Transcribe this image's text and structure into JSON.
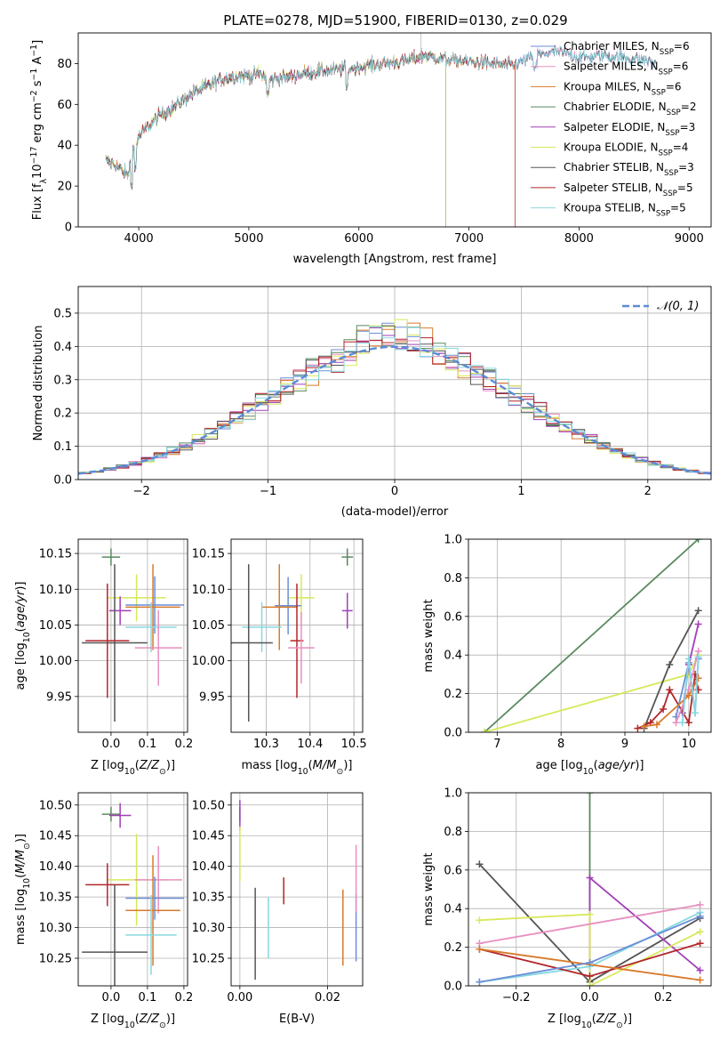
{
  "figure_title": "PLATE=0278, MJD=51900, FIBERID=0130, z=0.029",
  "models": [
    {
      "name": "Chabrier MILES",
      "nssp": "6",
      "color": "#6a8fd6"
    },
    {
      "name": "Salpeter MILES",
      "nssp": "6",
      "color": "#e88fbf"
    },
    {
      "name": "Kroupa MILES",
      "nssp": "6",
      "color": "#d9792a"
    },
    {
      "name": "Chabrier ELODIE",
      "nssp": "2",
      "color": "#5a8a5e"
    },
    {
      "name": "Salpeter ELODIE",
      "nssp": "3",
      "color": "#a23fb8"
    },
    {
      "name": "Kroupa ELODIE",
      "nssp": "4",
      "color": "#d8e85a"
    },
    {
      "name": "Chabrier STELIB",
      "nssp": "3",
      "color": "#555555"
    },
    {
      "name": "Salpeter STELIB",
      "nssp": "5",
      "color": "#b3262a"
    },
    {
      "name": "Kroupa STELIB",
      "nssp": "5",
      "color": "#86d8e0"
    }
  ],
  "chart_data": [
    {
      "id": "spectrum",
      "type": "line",
      "xlabel": "wavelength [Angstrom, rest frame]",
      "ylabel": "Flux [f_λ 10^-17 erg cm^-2 s^-1 A^-1]",
      "xlim": [
        3450,
        9200
      ],
      "ylim": [
        0,
        95
      ],
      "xticks": [
        4000,
        5000,
        6000,
        7000,
        8000,
        9000
      ],
      "yticks": [
        0,
        20,
        40,
        60,
        80
      ],
      "grid": false,
      "legend": "right",
      "continuum": {
        "x": [
          3700,
          3800,
          3900,
          3950,
          4000,
          4100,
          4200,
          4300,
          4400,
          4500,
          4600,
          4700,
          4800,
          4900,
          5000,
          5100,
          5200,
          5300,
          5400,
          5600,
          5800,
          6000,
          6200,
          6400,
          6600,
          6800,
          7000,
          7200,
          7400,
          7600,
          7800,
          8000,
          8200,
          8400,
          8600,
          8700
        ],
        "y": [
          32,
          30,
          25,
          38,
          44,
          50,
          55,
          58,
          62,
          66,
          68,
          71,
          73,
          74,
          74,
          75,
          72,
          73,
          74,
          76,
          77,
          78,
          80,
          81,
          84,
          82,
          81,
          80,
          79,
          84,
          86,
          83,
          84,
          83,
          82,
          80
        ]
      },
      "model_cutoffs": [
        {
          "model": "Chabrier ELODIE",
          "end_x": 6790
        },
        {
          "model": "Salpeter ELODIE",
          "end_x": 6790
        },
        {
          "model": "Kroupa ELODIE",
          "end_x": 6790
        },
        {
          "model": "Salpeter STELIB",
          "end_x": 7420
        },
        {
          "model": "Kroupa MILES",
          "end_x": 7420
        }
      ]
    },
    {
      "id": "residuals",
      "type": "histogram",
      "xlabel": "(data-model)/error",
      "ylabel": "Normed distribution",
      "xlim": [
        -2.5,
        2.5
      ],
      "ylim": [
        0,
        0.58
      ],
      "xticks": [
        -2,
        -1,
        0,
        1,
        2
      ],
      "yticks": [
        0.0,
        0.1,
        0.2,
        0.3,
        0.4,
        0.5
      ],
      "grid": true,
      "legend": "top-right",
      "bin_width": 0.1,
      "reference_curve": {
        "label": "N(0,1)",
        "color": "#5b8bd6",
        "mean": 0,
        "sigma": 1
      }
    },
    {
      "id": "age_vs_Z",
      "type": "errorbar",
      "xlabel": "Z [log10(Z/Z⊙)]",
      "ylabel": "age [log10(age/yr)]",
      "xlim": [
        -0.09,
        0.21
      ],
      "ylim": [
        9.9,
        10.17
      ],
      "xticks": [
        0.0,
        0.1,
        0.2
      ],
      "yticks": [
        9.95,
        10.0,
        10.05,
        10.1,
        10.15
      ],
      "grid": true,
      "points": [
        {
          "model": "Chabrier ELODIE",
          "x": 0.0,
          "xerr": 0.025,
          "y": 10.145,
          "yerr": 0.012
        },
        {
          "model": "Kroupa ELODIE",
          "x": 0.07,
          "xerr": 0.08,
          "y": 10.088,
          "yerr": 0.033
        },
        {
          "model": "Salpeter ELODIE",
          "x": 0.025,
          "xerr": 0.03,
          "y": 10.07,
          "yerr": 0.02
        },
        {
          "model": "Chabrier MILES",
          "x": 0.12,
          "xerr": 0.08,
          "y": 10.078,
          "yerr": 0.04
        },
        {
          "model": "Kroupa MILES",
          "x": 0.115,
          "xerr": 0.075,
          "y": 10.075,
          "yerr": 0.06
        },
        {
          "model": "Kroupa STELIB",
          "x": 0.11,
          "xerr": 0.07,
          "y": 10.047,
          "yerr": 0.035
        },
        {
          "model": "Chabrier STELIB",
          "x": 0.01,
          "xerr": 0.09,
          "y": 10.025,
          "yerr": 0.11
        },
        {
          "model": "Salpeter STELIB",
          "x": -0.01,
          "xerr": 0.06,
          "y": 10.028,
          "yerr": 0.08
        },
        {
          "model": "Salpeter MILES",
          "x": 0.13,
          "xerr": 0.065,
          "y": 10.018,
          "yerr": 0.053
        }
      ]
    },
    {
      "id": "age_vs_mass",
      "type": "errorbar",
      "xlabel": "mass [log10(M/M⊙)]",
      "ylabel": "",
      "xlim": [
        10.22,
        10.52
      ],
      "ylim": [
        9.9,
        10.17
      ],
      "xticks": [
        10.3,
        10.4,
        10.5
      ],
      "yticks": [
        9.95,
        10.0,
        10.05,
        10.1,
        10.15
      ],
      "grid": true,
      "points": [
        {
          "model": "Chabrier ELODIE",
          "x": 10.485,
          "xerr": 0.013,
          "y": 10.145,
          "yerr": 0.012
        },
        {
          "model": "Kroupa ELODIE",
          "x": 10.38,
          "xerr": 0.03,
          "y": 10.088,
          "yerr": 0.033
        },
        {
          "model": "Salpeter ELODIE",
          "x": 10.485,
          "xerr": 0.012,
          "y": 10.07,
          "yerr": 0.025
        },
        {
          "model": "Chabrier MILES",
          "x": 10.35,
          "xerr": 0.03,
          "y": 10.077,
          "yerr": 0.04
        },
        {
          "model": "Kroupa MILES",
          "x": 10.33,
          "xerr": 0.04,
          "y": 10.075,
          "yerr": 0.06
        },
        {
          "model": "Kroupa STELIB",
          "x": 10.29,
          "xerr": 0.045,
          "y": 10.047,
          "yerr": 0.035
        },
        {
          "model": "Chabrier STELIB",
          "x": 10.26,
          "xerr": 0.055,
          "y": 10.025,
          "yerr": 0.11
        },
        {
          "model": "Salpeter STELIB",
          "x": 10.37,
          "xerr": 0.015,
          "y": 10.028,
          "yerr": 0.08
        },
        {
          "model": "Salpeter MILES",
          "x": 10.38,
          "xerr": 0.03,
          "y": 10.018,
          "yerr": 0.05
        }
      ]
    },
    {
      "id": "weight_vs_age",
      "type": "line",
      "xlabel": "age [log10(age/yr)]",
      "ylabel": "mass weight",
      "xlim": [
        6.55,
        10.35
      ],
      "ylim": [
        0,
        1.0
      ],
      "xticks": [
        7,
        8,
        9,
        10
      ],
      "yticks": [
        0.0,
        0.2,
        0.4,
        0.6,
        0.8,
        1.0
      ],
      "grid": true,
      "series": [
        {
          "model": "Chabrier ELODIE",
          "x": [
            6.8,
            10.15
          ],
          "y": [
            0.0,
            1.0
          ]
        },
        {
          "model": "Kroupa ELODIE",
          "x": [
            6.8,
            10.0,
            10.15
          ],
          "y": [
            0.0,
            0.3,
            0.4
          ]
        },
        {
          "model": "Chabrier STELIB",
          "x": [
            9.3,
            9.7,
            10.15
          ],
          "y": [
            0.02,
            0.35,
            0.63
          ]
        },
        {
          "model": "Salpeter ELODIE",
          "x": [
            9.9,
            10.0,
            10.15
          ],
          "y": [
            0.1,
            0.35,
            0.56
          ]
        },
        {
          "model": "Salpeter STELIB",
          "x": [
            9.2,
            9.4,
            9.6,
            9.7,
            10.0,
            10.1,
            10.15
          ],
          "y": [
            0.02,
            0.05,
            0.12,
            0.22,
            0.05,
            0.3,
            0.22
          ]
        },
        {
          "model": "Chabrier MILES",
          "x": [
            9.8,
            10.0,
            10.1,
            10.15
          ],
          "y": [
            0.08,
            0.36,
            0.1,
            0.38
          ]
        },
        {
          "model": "Salpeter MILES",
          "x": [
            9.8,
            10.0,
            10.15
          ],
          "y": [
            0.05,
            0.22,
            0.42
          ]
        },
        {
          "model": "Kroupa MILES",
          "x": [
            9.3,
            9.5,
            10.0,
            10.15
          ],
          "y": [
            0.03,
            0.04,
            0.19,
            0.28
          ]
        },
        {
          "model": "Kroupa STELIB",
          "x": [
            9.9,
            10.0,
            10.1,
            10.15
          ],
          "y": [
            0.05,
            0.38,
            0.1,
            0.39
          ]
        }
      ]
    },
    {
      "id": "mass_vs_Z",
      "type": "errorbar",
      "xlabel": "Z [log10(Z/Z⊙)]",
      "ylabel": "mass [log10(M/M⊙)]",
      "xlim": [
        -0.09,
        0.21
      ],
      "ylim": [
        10.205,
        10.52
      ],
      "xticks": [
        0.0,
        0.1,
        0.2
      ],
      "yticks": [
        10.25,
        10.3,
        10.35,
        10.4,
        10.45,
        10.5
      ],
      "grid": true,
      "points": [
        {
          "model": "Chabrier ELODIE",
          "x": 0.0,
          "xerr": 0.025,
          "y": 10.485,
          "yerr": 0.012
        },
        {
          "model": "Salpeter ELODIE",
          "x": 0.025,
          "xerr": 0.03,
          "y": 10.483,
          "yerr": 0.02
        },
        {
          "model": "Kroupa ELODIE",
          "x": 0.07,
          "xerr": 0.08,
          "y": 10.378,
          "yerr": 0.075
        },
        {
          "model": "Salpeter MILES",
          "x": 0.13,
          "xerr": 0.065,
          "y": 10.378,
          "yerr": 0.055
        },
        {
          "model": "Salpeter STELIB",
          "x": -0.01,
          "xerr": 0.06,
          "y": 10.37,
          "yerr": 0.035
        },
        {
          "model": "Chabrier MILES",
          "x": 0.12,
          "xerr": 0.08,
          "y": 10.348,
          "yerr": 0.035
        },
        {
          "model": "Kroupa MILES",
          "x": 0.115,
          "xerr": 0.075,
          "y": 10.328,
          "yerr": 0.09
        },
        {
          "model": "Kroupa STELIB",
          "x": 0.11,
          "xerr": 0.07,
          "y": 10.288,
          "yerr": 0.065
        },
        {
          "model": "Chabrier STELIB",
          "x": 0.01,
          "xerr": 0.09,
          "y": 10.26,
          "yerr": 0.11
        }
      ]
    },
    {
      "id": "mass_vs_EBV",
      "type": "errorbar",
      "xlabel": "E(B-V)",
      "ylabel": "",
      "xlim": [
        -0.002,
        0.028
      ],
      "ylim": [
        10.205,
        10.52
      ],
      "xticks": [
        0.0,
        0.02
      ],
      "yticks": [
        10.25,
        10.3,
        10.35,
        10.4,
        10.45,
        10.5
      ],
      "grid": true,
      "points": [
        {
          "model": "Chabrier ELODIE",
          "x": 0.0,
          "xerr": 0,
          "y": 10.485,
          "yerr": 0.012
        },
        {
          "model": "Salpeter ELODIE",
          "x": 0.0,
          "xerr": 0,
          "y": 10.483,
          "yerr": 0.025
        },
        {
          "model": "Kroupa ELODIE",
          "x": 0.0,
          "xerr": 0,
          "y": 10.42,
          "yerr": 0.045
        },
        {
          "model": "Chabrier STELIB",
          "x": 0.0035,
          "xerr": 0,
          "y": 10.29,
          "yerr": 0.075
        },
        {
          "model": "Kroupa STELIB",
          "x": 0.0065,
          "xerr": 0,
          "y": 10.3,
          "yerr": 0.05
        },
        {
          "model": "Salpeter STELIB",
          "x": 0.01,
          "xerr": 0,
          "y": 10.36,
          "yerr": 0.022
        },
        {
          "model": "Kroupa MILES",
          "x": 0.0235,
          "xerr": 0,
          "y": 10.3,
          "yerr": 0.062
        },
        {
          "model": "Chabrier MILES",
          "x": 0.0265,
          "xerr": 0,
          "y": 10.3,
          "yerr": 0.055
        },
        {
          "model": "Salpeter MILES",
          "x": 0.0265,
          "xerr": 0,
          "y": 10.38,
          "yerr": 0.055
        }
      ]
    },
    {
      "id": "weight_vs_Z",
      "type": "line",
      "xlabel": "Z [log10(Z/Z⊙)]",
      "ylabel": "mass weight",
      "xlim": [
        -0.33,
        0.33
      ],
      "ylim": [
        0,
        1.0
      ],
      "xticks": [
        -0.2,
        0.0,
        0.2
      ],
      "yticks": [
        0.0,
        0.2,
        0.4,
        0.6,
        0.8,
        1.0
      ],
      "grid": true,
      "series": [
        {
          "model": "Chabrier ELODIE",
          "x": [
            0.0,
            0.0
          ],
          "y": [
            0.0,
            1.0
          ]
        },
        {
          "model": "Chabrier STELIB",
          "x": [
            -0.3,
            0.0,
            0.3
          ],
          "y": [
            0.63,
            0.02,
            0.35
          ]
        },
        {
          "model": "Salpeter ELODIE",
          "x": [
            0.0,
            0.0,
            0.3
          ],
          "y": [
            0.1,
            0.56,
            0.08
          ]
        },
        {
          "model": "Kroupa ELODIE",
          "x": [
            -0.3,
            0.0,
            0.0,
            0.3
          ],
          "y": [
            0.34,
            0.37,
            0.0,
            0.28
          ]
        },
        {
          "model": "Salpeter MILES",
          "x": [
            -0.3,
            0.3
          ],
          "y": [
            0.22,
            0.42
          ]
        },
        {
          "model": "Kroupa STELIB",
          "x": [
            -0.3,
            0.0,
            0.3
          ],
          "y": [
            0.02,
            0.1,
            0.38
          ]
        },
        {
          "model": "Salpeter STELIB",
          "x": [
            -0.3,
            0.0,
            0.3
          ],
          "y": [
            0.19,
            0.05,
            0.22
          ]
        },
        {
          "model": "Kroupa MILES",
          "x": [
            -0.3,
            0.3
          ],
          "y": [
            0.19,
            0.03
          ]
        },
        {
          "model": "Chabrier MILES",
          "x": [
            -0.3,
            0.0,
            0.3
          ],
          "y": [
            0.02,
            0.12,
            0.36
          ]
        }
      ]
    }
  ]
}
